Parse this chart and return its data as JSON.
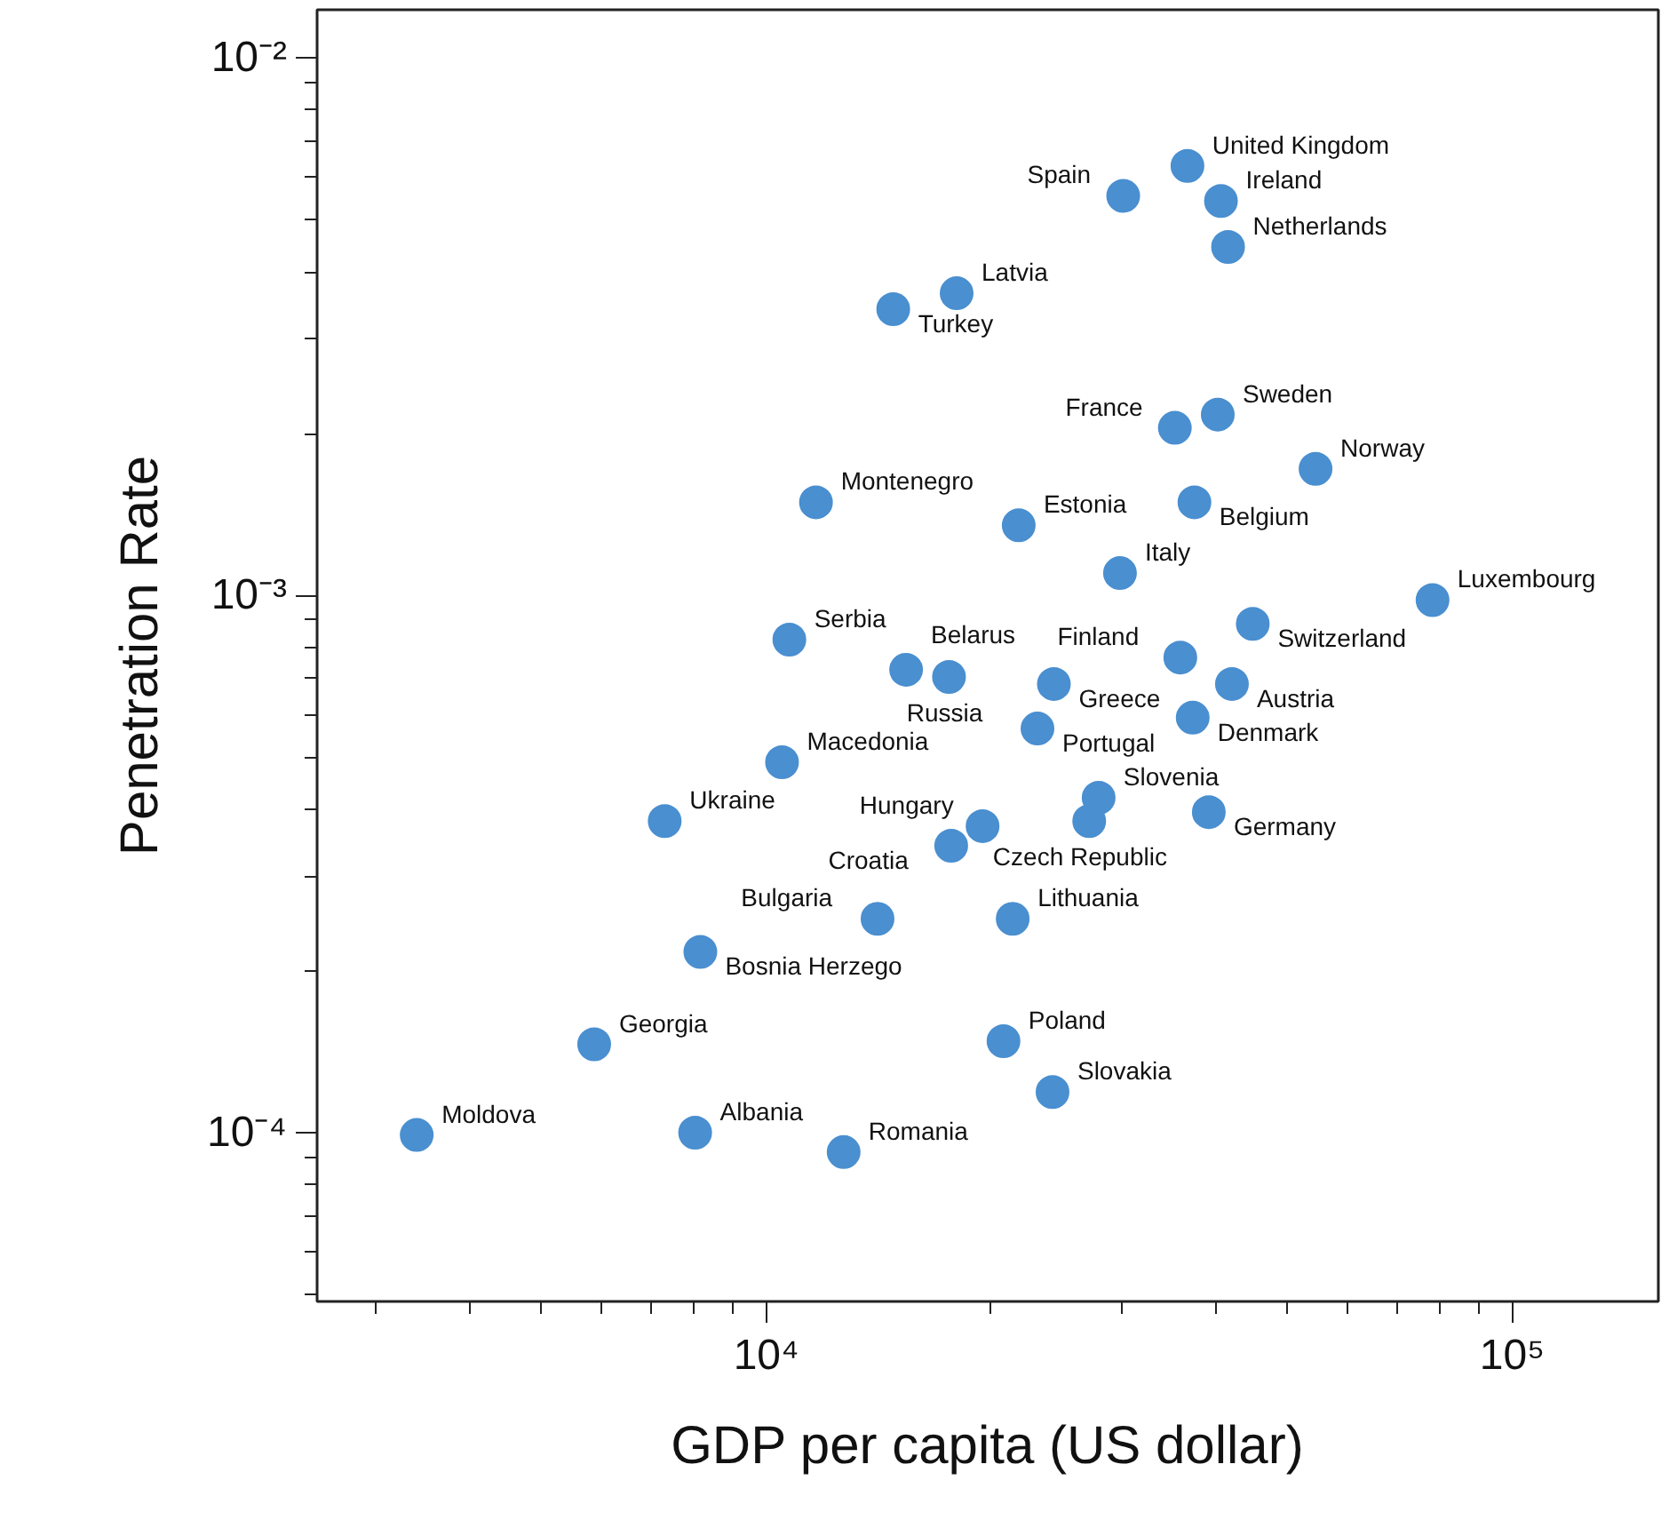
{
  "chart_data": {
    "type": "scatter",
    "xlabel": "GDP per capita (US dollar)",
    "ylabel": "Penetration Rate",
    "log": "xy",
    "grid": false,
    "marker": "circle",
    "xlim": [
      2500,
      157000
    ],
    "ylim": [
      4.85e-05,
      0.0123
    ],
    "xticks": [
      {
        "value": 3000,
        "label": null
      },
      {
        "value": 4000,
        "label": null
      },
      {
        "value": 5000,
        "label": null
      },
      {
        "value": 6000,
        "label": null
      },
      {
        "value": 7000,
        "label": null
      },
      {
        "value": 8000,
        "label": null
      },
      {
        "value": 9000,
        "label": null
      },
      {
        "value": 10000,
        "label": "10⁴"
      },
      {
        "value": 20000,
        "label": null
      },
      {
        "value": 30000,
        "label": null
      },
      {
        "value": 40000,
        "label": null
      },
      {
        "value": 50000,
        "label": null
      },
      {
        "value": 60000,
        "label": null
      },
      {
        "value": 70000,
        "label": null
      },
      {
        "value": 80000,
        "label": null
      },
      {
        "value": 90000,
        "label": null
      },
      {
        "value": 100000,
        "label": "10⁵"
      }
    ],
    "yticks": [
      {
        "value": 5e-05,
        "label": null
      },
      {
        "value": 6e-05,
        "label": null
      },
      {
        "value": 7e-05,
        "label": null
      },
      {
        "value": 8e-05,
        "label": null
      },
      {
        "value": 9e-05,
        "label": null
      },
      {
        "value": 0.0001,
        "label": "10⁻⁴"
      },
      {
        "value": 0.0002,
        "label": null
      },
      {
        "value": 0.0003,
        "label": null
      },
      {
        "value": 0.0004,
        "label": null
      },
      {
        "value": 0.0005,
        "label": null
      },
      {
        "value": 0.0006,
        "label": null
      },
      {
        "value": 0.0007,
        "label": null
      },
      {
        "value": 0.0008,
        "label": null
      },
      {
        "value": 0.0009,
        "label": null
      },
      {
        "value": 0.001,
        "label": "10⁻³"
      },
      {
        "value": 0.002,
        "label": null
      },
      {
        "value": 0.003,
        "label": null
      },
      {
        "value": 0.004,
        "label": null
      },
      {
        "value": 0.005,
        "label": null
      },
      {
        "value": 0.006,
        "label": null
      },
      {
        "value": 0.007,
        "label": null
      },
      {
        "value": 0.008,
        "label": null
      },
      {
        "value": 0.009,
        "label": null
      },
      {
        "value": 0.01,
        "label": "10⁻²"
      }
    ],
    "series": [
      {
        "color": "#4a8fd0",
        "x": [
          36700,
          30100,
          40700,
          41600,
          18000,
          14800,
          40300,
          35300,
          54500,
          37500,
          11660,
          21800,
          29800,
          78200,
          44900,
          10740,
          15400,
          17580,
          35900,
          24300,
          42100,
          23100,
          37300,
          10500,
          27900,
          39200,
          27100,
          7310,
          19500,
          17700,
          14100,
          21400,
          8160,
          5880,
          20800,
          24200,
          3400,
          8030,
          12700
        ],
        "values": [
          0.0063,
          0.00554,
          0.00542,
          0.00445,
          0.00365,
          0.00341,
          0.00217,
          0.00205,
          0.00172,
          0.00149,
          0.00149,
          0.00135,
          0.0011,
          0.00098,
          0.000885,
          0.000827,
          0.000727,
          0.000705,
          0.000766,
          0.000684,
          0.000684,
          0.000565,
          0.000592,
          0.000489,
          0.00042,
          0.000395,
          0.00038,
          0.00038,
          0.000372,
          0.000342,
          0.00025,
          0.00025,
          0.000217,
          0.000146,
          0.000148,
          0.000119,
          9.9e-05,
          0.0001,
          9.2e-05
        ]
      }
    ],
    "annotations": [
      {
        "text": "United Kingdom",
        "x": 36700,
        "y": 0.0063
      },
      {
        "text": "Spain",
        "x": 30100,
        "y": 0.00554
      },
      {
        "text": "Ireland",
        "x": 40700,
        "y": 0.00542
      },
      {
        "text": "Netherlands",
        "x": 41600,
        "y": 0.00445
      },
      {
        "text": "Latvia",
        "x": 18000,
        "y": 0.00365
      },
      {
        "text": "Turkey",
        "x": 14800,
        "y": 0.00341
      },
      {
        "text": "Sweden",
        "x": 40300,
        "y": 0.00217
      },
      {
        "text": "France",
        "x": 35300,
        "y": 0.00205
      },
      {
        "text": "Norway",
        "x": 54500,
        "y": 0.00172
      },
      {
        "text": "Belgium",
        "x": 37500,
        "y": 0.00149
      },
      {
        "text": "Montenegro",
        "x": 11660,
        "y": 0.00149
      },
      {
        "text": "Estonia",
        "x": 21800,
        "y": 0.00135
      },
      {
        "text": "Italy",
        "x": 29800,
        "y": 0.0011
      },
      {
        "text": "Luxembourg",
        "x": 78200,
        "y": 0.00098
      },
      {
        "text": "Switzerland",
        "x": 44900,
        "y": 0.000885
      },
      {
        "text": "Serbia",
        "x": 10740,
        "y": 0.000827
      },
      {
        "text": "Belarus",
        "x": 15400,
        "y": 0.000727
      },
      {
        "text": "Russia",
        "x": 17580,
        "y": 0.000705
      },
      {
        "text": "Finland",
        "x": 35900,
        "y": 0.000766
      },
      {
        "text": "Greece",
        "x": 24300,
        "y": 0.000684
      },
      {
        "text": "Austria",
        "x": 42100,
        "y": 0.000684
      },
      {
        "text": "Portugal",
        "x": 23100,
        "y": 0.000565
      },
      {
        "text": "Denmark",
        "x": 37300,
        "y": 0.000592
      },
      {
        "text": "Macedonia",
        "x": 10500,
        "y": 0.000489
      },
      {
        "text": "Slovenia",
        "x": 27900,
        "y": 0.00042
      },
      {
        "text": "Germany",
        "x": 39200,
        "y": 0.000395
      },
      {
        "text": "Czech Republic",
        "x": 27100,
        "y": 0.00038
      },
      {
        "text": "Ukraine",
        "x": 7310,
        "y": 0.00038
      },
      {
        "text": "Hungary",
        "x": 19500,
        "y": 0.000372
      },
      {
        "text": "Croatia",
        "x": 17700,
        "y": 0.000342
      },
      {
        "text": "Bulgaria",
        "x": 14100,
        "y": 0.00025
      },
      {
        "text": "Lithuania",
        "x": 21400,
        "y": 0.00025
      },
      {
        "text": "Bosnia Herzego",
        "x": 8160,
        "y": 0.000217
      },
      {
        "text": "Georgia",
        "x": 5880,
        "y": 0.000146
      },
      {
        "text": "Poland",
        "x": 20800,
        "y": 0.000148
      },
      {
        "text": "Slovakia",
        "x": 24200,
        "y": 0.000119
      },
      {
        "text": "Moldova",
        "x": 3400,
        "y": 9.9e-05
      },
      {
        "text": "Albania",
        "x": 8030,
        "y": 0.0001
      },
      {
        "text": "Romania",
        "x": 12700,
        "y": 9.2e-05
      }
    ]
  }
}
